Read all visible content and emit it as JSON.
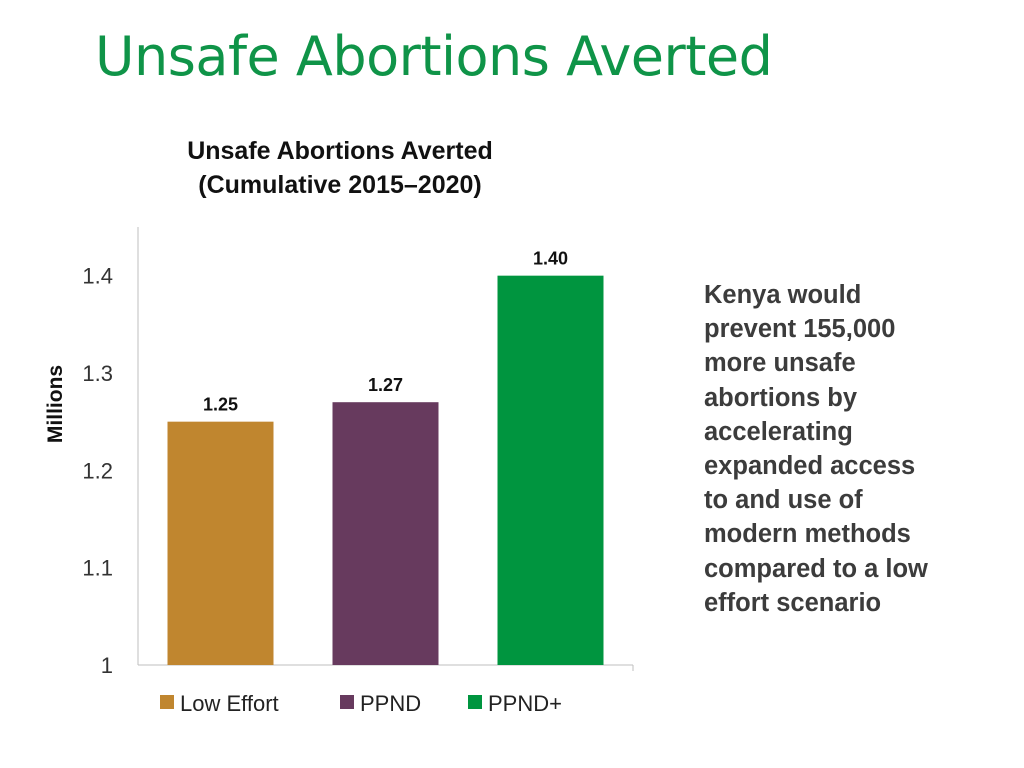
{
  "slide": {
    "title": "Unsafe Abortions Averted",
    "side_note_lines": [
      "Kenya would",
      "prevent 155,000",
      "more unsafe",
      "abortions by",
      "accelerating",
      "expanded access",
      "to and use of",
      "modern methods",
      "compared to a low",
      "effort scenario"
    ]
  },
  "chart_data": {
    "type": "bar",
    "title_lines": [
      "Unsafe Abortions Averted",
      "(Cumulative 2015–2020)"
    ],
    "xlabel": "",
    "ylabel": "Millions",
    "categories": [
      "Low Effort",
      "PPND",
      "PPND+"
    ],
    "values": [
      1.25,
      1.27,
      1.4
    ],
    "data_labels": [
      "1.25",
      "1.27",
      "1.40"
    ],
    "colors": [
      "#c0862f",
      "#673a5e",
      "#00953f"
    ],
    "ylim": [
      1.0,
      1.45
    ],
    "yticks": [
      1,
      1.1,
      1.2,
      1.3,
      1.4
    ],
    "ytick_labels": [
      "1",
      "1.1",
      "1.2",
      "1.3",
      "1.4"
    ],
    "grid": false,
    "legend": {
      "position": "bottom",
      "entries": [
        "Low Effort",
        "PPND",
        "PPND+"
      ]
    }
  }
}
